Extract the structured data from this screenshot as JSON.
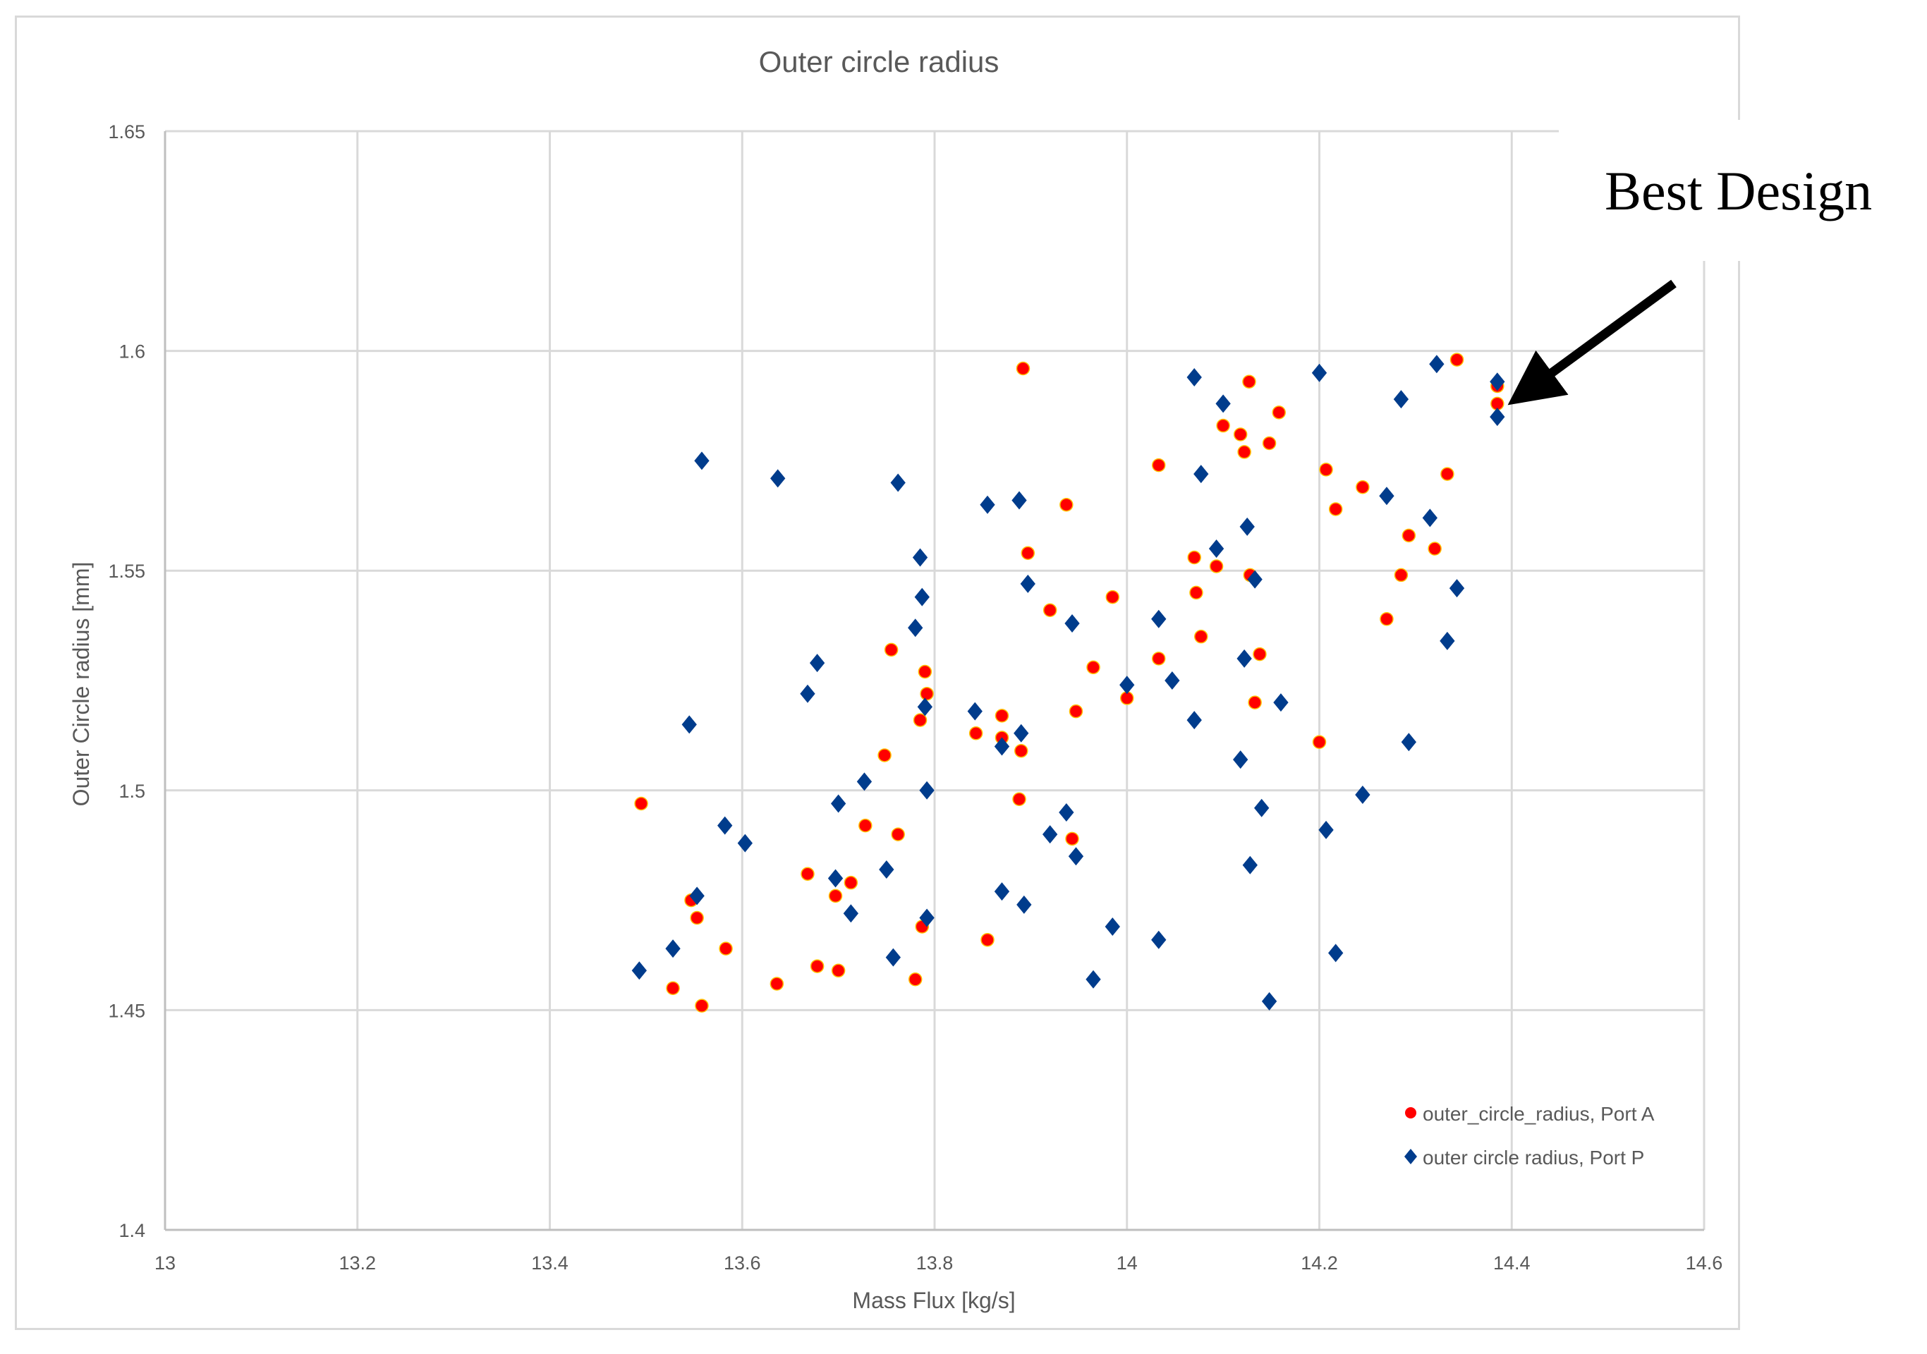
{
  "chart_data": {
    "type": "scatter",
    "title": "Outer circle radius",
    "xlabel": "Mass Flux [kg/s]",
    "ylabel": "Outer Circle radius [mm]",
    "xlim": [
      13,
      14.6
    ],
    "ylim": [
      1.4,
      1.65
    ],
    "xticks": [
      13,
      13.2,
      13.4,
      13.6,
      13.8,
      14,
      14.2,
      14.4,
      14.6
    ],
    "xtick_labels": [
      "13",
      "13.2",
      "13.4",
      "13.6",
      "13.8",
      "14",
      "14.2",
      "14.4",
      "14.6"
    ],
    "yticks": [
      1.4,
      1.45,
      1.5,
      1.55,
      1.6,
      1.65
    ],
    "ytick_labels": [
      "1.4",
      "1.45",
      "1.5",
      "1.55",
      "1.6",
      "1.65"
    ],
    "grid": true,
    "legend_position": "bottom-right",
    "series": [
      {
        "name": "outer_circle_radius, Port A",
        "marker": "circle",
        "color": "#ff0000",
        "points": [
          [
            13.495,
            1.497
          ],
          [
            13.528,
            1.455
          ],
          [
            13.547,
            1.475
          ],
          [
            13.553,
            1.471
          ],
          [
            13.558,
            1.451
          ],
          [
            13.583,
            1.464
          ],
          [
            13.636,
            1.456
          ],
          [
            13.668,
            1.481
          ],
          [
            13.678,
            1.46
          ],
          [
            13.697,
            1.476
          ],
          [
            13.7,
            1.459
          ],
          [
            13.713,
            1.479
          ],
          [
            13.728,
            1.492
          ],
          [
            13.748,
            1.508
          ],
          [
            13.755,
            1.532
          ],
          [
            13.762,
            1.49
          ],
          [
            13.78,
            1.457
          ],
          [
            13.785,
            1.516
          ],
          [
            13.787,
            1.469
          ],
          [
            13.79,
            1.527
          ],
          [
            13.792,
            1.522
          ],
          [
            13.843,
            1.513
          ],
          [
            13.855,
            1.466
          ],
          [
            13.87,
            1.517
          ],
          [
            13.87,
            1.512
          ],
          [
            13.888,
            1.498
          ],
          [
            13.89,
            1.509
          ],
          [
            13.892,
            1.596
          ],
          [
            13.897,
            1.554
          ],
          [
            13.92,
            1.541
          ],
          [
            13.937,
            1.565
          ],
          [
            13.943,
            1.489
          ],
          [
            13.947,
            1.518
          ],
          [
            13.965,
            1.528
          ],
          [
            13.985,
            1.544
          ],
          [
            14.0,
            1.521
          ],
          [
            14.033,
            1.574
          ],
          [
            14.033,
            1.53
          ],
          [
            14.07,
            1.553
          ],
          [
            14.072,
            1.545
          ],
          [
            14.077,
            1.535
          ],
          [
            14.093,
            1.551
          ],
          [
            14.1,
            1.583
          ],
          [
            14.118,
            1.581
          ],
          [
            14.122,
            1.577
          ],
          [
            14.127,
            1.593
          ],
          [
            14.128,
            1.549
          ],
          [
            14.133,
            1.52
          ],
          [
            14.138,
            1.531
          ],
          [
            14.148,
            1.579
          ],
          [
            14.158,
            1.586
          ],
          [
            14.2,
            1.511
          ],
          [
            14.207,
            1.573
          ],
          [
            14.217,
            1.564
          ],
          [
            14.245,
            1.569
          ],
          [
            14.27,
            1.539
          ],
          [
            14.285,
            1.549
          ],
          [
            14.293,
            1.558
          ],
          [
            14.32,
            1.555
          ],
          [
            14.333,
            1.572
          ],
          [
            14.343,
            1.598
          ],
          [
            14.385,
            1.592
          ],
          [
            14.385,
            1.588
          ]
        ]
      },
      {
        "name": "outer circle radius, Port P",
        "marker": "diamond",
        "color": "#003c8c",
        "points": [
          [
            13.493,
            1.459
          ],
          [
            13.528,
            1.464
          ],
          [
            13.545,
            1.515
          ],
          [
            13.553,
            1.476
          ],
          [
            13.558,
            1.575
          ],
          [
            13.582,
            1.492
          ],
          [
            13.603,
            1.488
          ],
          [
            13.637,
            1.571
          ],
          [
            13.668,
            1.522
          ],
          [
            13.678,
            1.529
          ],
          [
            13.697,
            1.48
          ],
          [
            13.7,
            1.497
          ],
          [
            13.713,
            1.472
          ],
          [
            13.727,
            1.502
          ],
          [
            13.75,
            1.482
          ],
          [
            13.757,
            1.462
          ],
          [
            13.762,
            1.57
          ],
          [
            13.78,
            1.537
          ],
          [
            13.785,
            1.553
          ],
          [
            13.787,
            1.544
          ],
          [
            13.79,
            1.519
          ],
          [
            13.792,
            1.5
          ],
          [
            13.792,
            1.471
          ],
          [
            13.842,
            1.518
          ],
          [
            13.855,
            1.565
          ],
          [
            13.87,
            1.51
          ],
          [
            13.87,
            1.477
          ],
          [
            13.888,
            1.566
          ],
          [
            13.89,
            1.513
          ],
          [
            13.893,
            1.474
          ],
          [
            13.897,
            1.547
          ],
          [
            13.92,
            1.49
          ],
          [
            13.937,
            1.495
          ],
          [
            13.943,
            1.538
          ],
          [
            13.947,
            1.485
          ],
          [
            13.965,
            1.457
          ],
          [
            13.985,
            1.469
          ],
          [
            14.0,
            1.524
          ],
          [
            14.033,
            1.539
          ],
          [
            14.033,
            1.466
          ],
          [
            14.047,
            1.525
          ],
          [
            14.07,
            1.594
          ],
          [
            14.07,
            1.516
          ],
          [
            14.077,
            1.572
          ],
          [
            14.093,
            1.555
          ],
          [
            14.1,
            1.588
          ],
          [
            14.118,
            1.507
          ],
          [
            14.122,
            1.53
          ],
          [
            14.125,
            1.56
          ],
          [
            14.128,
            1.483
          ],
          [
            14.133,
            1.548
          ],
          [
            14.14,
            1.496
          ],
          [
            14.148,
            1.452
          ],
          [
            14.16,
            1.52
          ],
          [
            14.2,
            1.595
          ],
          [
            14.207,
            1.491
          ],
          [
            14.217,
            1.463
          ],
          [
            14.245,
            1.499
          ],
          [
            14.27,
            1.567
          ],
          [
            14.285,
            1.589
          ],
          [
            14.293,
            1.511
          ],
          [
            14.315,
            1.562
          ],
          [
            14.322,
            1.597
          ],
          [
            14.333,
            1.534
          ],
          [
            14.343,
            1.546
          ],
          [
            14.385,
            1.593
          ],
          [
            14.385,
            1.585
          ]
        ]
      }
    ],
    "annotation": {
      "text": "Best Design",
      "points_to": [
        14.385,
        1.593
      ]
    }
  }
}
